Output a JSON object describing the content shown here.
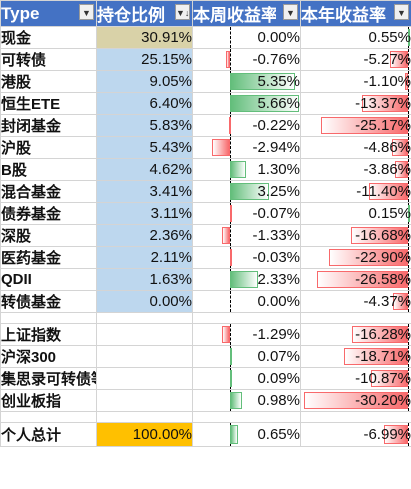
{
  "headers": {
    "type": "Type",
    "position": "持仓比例",
    "week_return": "本周收益率",
    "year_return": "本年收益率"
  },
  "rows": [
    {
      "name": "现金",
      "position": "30.91%",
      "position_pct": 30.91,
      "week": "0.00%",
      "week_pct": 0.0,
      "year": "0.55%",
      "year_pct": 0.55
    },
    {
      "name": "可转债",
      "position": "25.15%",
      "position_pct": 25.15,
      "week": "-0.76%",
      "week_pct": -0.76,
      "year": "-5.27%",
      "year_pct": -5.27
    },
    {
      "name": "港股",
      "position": "9.05%",
      "position_pct": 9.05,
      "week": "5.35%",
      "week_pct": 5.35,
      "year": "-1.10%",
      "year_pct": -1.1
    },
    {
      "name": "恒生ETE",
      "position": "6.40%",
      "position_pct": 6.4,
      "week": "5.66%",
      "week_pct": 5.66,
      "year": "-13.37%",
      "year_pct": -13.37
    },
    {
      "name": "封闭基金",
      "position": "5.83%",
      "position_pct": 5.83,
      "week": "-0.22%",
      "week_pct": -0.22,
      "year": "-25.17%",
      "year_pct": -25.17
    },
    {
      "name": "沪股",
      "position": "5.43%",
      "position_pct": 5.43,
      "week": "-2.94%",
      "week_pct": -2.94,
      "year": "-4.86%",
      "year_pct": -4.86
    },
    {
      "name": "B股",
      "position": "4.62%",
      "position_pct": 4.62,
      "week": "1.30%",
      "week_pct": 1.3,
      "year": "-3.86%",
      "year_pct": -3.86
    },
    {
      "name": "混合基金",
      "position": "3.41%",
      "position_pct": 3.41,
      "week": "3.25%",
      "week_pct": 3.25,
      "year": "-11.40%",
      "year_pct": -11.4
    },
    {
      "name": "债券基金",
      "position": "3.11%",
      "position_pct": 3.11,
      "week": "-0.07%",
      "week_pct": -0.07,
      "year": "0.15%",
      "year_pct": 0.15
    },
    {
      "name": "深股",
      "position": "2.36%",
      "position_pct": 2.36,
      "week": "-1.33%",
      "week_pct": -1.33,
      "year": "-16.68%",
      "year_pct": -16.68
    },
    {
      "name": "医药基金",
      "position": "2.11%",
      "position_pct": 2.11,
      "week": "-0.03%",
      "week_pct": -0.03,
      "year": "-22.90%",
      "year_pct": -22.9
    },
    {
      "name": "QDII",
      "position": "1.63%",
      "position_pct": 1.63,
      "week": "2.33%",
      "week_pct": 2.33,
      "year": "-26.58%",
      "year_pct": -26.58
    },
    {
      "name": "转债基金",
      "position": "0.00%",
      "position_pct": 0.0,
      "week": "0.00%",
      "week_pct": 0.0,
      "year": "-4.37%",
      "year_pct": -4.37
    }
  ],
  "indices": [
    {
      "name": "上证指数",
      "week": "-1.29%",
      "week_pct": -1.29,
      "year": "-16.28%",
      "year_pct": -16.28
    },
    {
      "name": "沪深300",
      "week": "0.07%",
      "week_pct": 0.07,
      "year": "-18.71%",
      "year_pct": -18.71
    },
    {
      "name": "集思录可转债等权",
      "week": "0.09%",
      "week_pct": 0.09,
      "year": "-10.87%",
      "year_pct": -10.87
    },
    {
      "name": "创业板指",
      "week": "0.98%",
      "week_pct": 0.98,
      "year": "-30.20%",
      "year_pct": -30.2
    }
  ],
  "total": {
    "name": "个人总计",
    "position": "100.00%",
    "week": "0.65%",
    "week_pct": 0.65,
    "year": "-6.99%",
    "year_pct": -6.99
  },
  "colors": {
    "header_bg": "#4472c4",
    "cash_position_fill": "#d9d2a8",
    "position_fill": "#bdd7ee",
    "total_position_fill": "#ffc000",
    "positive_bar": "#63be7b",
    "negative_bar": "#f8696b"
  },
  "icons": {
    "filter": "dropdown-arrow-icon",
    "sort": "sort-descending-arrow-icon"
  }
}
